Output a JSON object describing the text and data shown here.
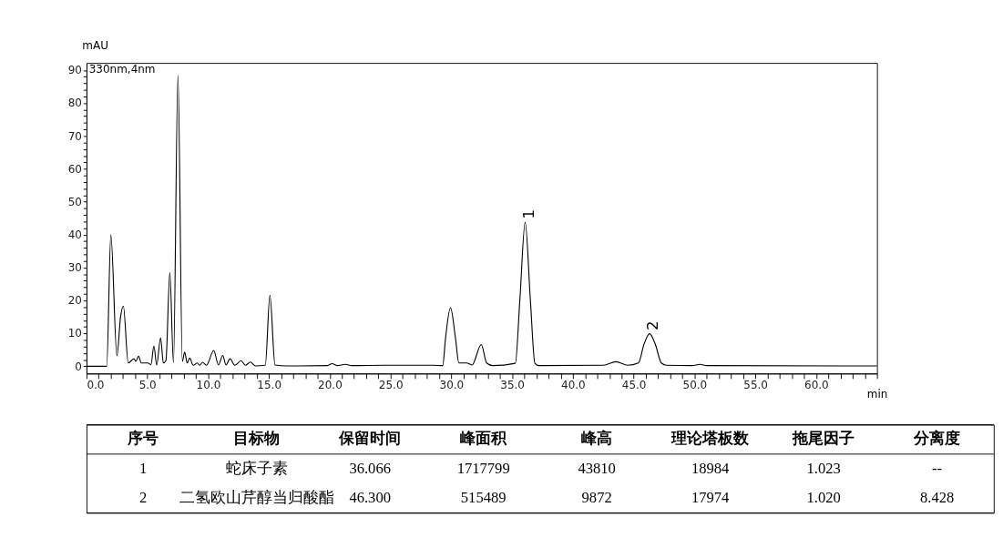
{
  "chart_data": [
    {
      "type": "line",
      "ylabel": "mAU",
      "xlabel": "min",
      "grid": false,
      "annotations": [
        "330nm,4nm",
        {
          "text": "1",
          "x": 36.07,
          "y": 43.8
        },
        {
          "text": "2",
          "x": 46.3,
          "y": 9.9
        }
      ],
      "xlim": [
        0,
        65
      ],
      "ylim": [
        -2.2,
        92.2
      ],
      "xticks": [
        {
          "value": 0,
          "label": "0.0"
        },
        {
          "value": 1,
          "label": null
        },
        {
          "value": 2,
          "label": null
        },
        {
          "value": 3,
          "label": null
        },
        {
          "value": 4,
          "label": null
        },
        {
          "value": 5,
          "label": "5.0"
        },
        {
          "value": 6,
          "label": null
        },
        {
          "value": 7,
          "label": null
        },
        {
          "value": 8,
          "label": null
        },
        {
          "value": 9,
          "label": null
        },
        {
          "value": 10,
          "label": "10.0"
        },
        {
          "value": 11,
          "label": null
        },
        {
          "value": 12,
          "label": null
        },
        {
          "value": 13,
          "label": null
        },
        {
          "value": 14,
          "label": null
        },
        {
          "value": 15,
          "label": "15.0"
        },
        {
          "value": 16,
          "label": null
        },
        {
          "value": 17,
          "label": null
        },
        {
          "value": 18,
          "label": null
        },
        {
          "value": 19,
          "label": null
        },
        {
          "value": 20,
          "label": "20.0"
        },
        {
          "value": 21,
          "label": null
        },
        {
          "value": 22,
          "label": null
        },
        {
          "value": 23,
          "label": null
        },
        {
          "value": 24,
          "label": null
        },
        {
          "value": 25,
          "label": "25.0"
        },
        {
          "value": 26,
          "label": null
        },
        {
          "value": 27,
          "label": null
        },
        {
          "value": 28,
          "label": null
        },
        {
          "value": 29,
          "label": null
        },
        {
          "value": 30,
          "label": "30.0"
        },
        {
          "value": 31,
          "label": null
        },
        {
          "value": 32,
          "label": null
        },
        {
          "value": 33,
          "label": null
        },
        {
          "value": 34,
          "label": null
        },
        {
          "value": 35,
          "label": "35.0"
        },
        {
          "value": 36,
          "label": null
        },
        {
          "value": 37,
          "label": null
        },
        {
          "value": 38,
          "label": null
        },
        {
          "value": 39,
          "label": null
        },
        {
          "value": 40,
          "label": "40.0"
        },
        {
          "value": 41,
          "label": null
        },
        {
          "value": 42,
          "label": null
        },
        {
          "value": 43,
          "label": null
        },
        {
          "value": 44,
          "label": null
        },
        {
          "value": 45,
          "label": "45.0"
        },
        {
          "value": 46,
          "label": null
        },
        {
          "value": 47,
          "label": null
        },
        {
          "value": 48,
          "label": null
        },
        {
          "value": 49,
          "label": null
        },
        {
          "value": 50,
          "label": "50.0"
        },
        {
          "value": 51,
          "label": null
        },
        {
          "value": 52,
          "label": null
        },
        {
          "value": 53,
          "label": null
        },
        {
          "value": 54,
          "label": null
        },
        {
          "value": 55,
          "label": "55.0"
        },
        {
          "value": 56,
          "label": null
        },
        {
          "value": 57,
          "label": null
        },
        {
          "value": 58,
          "label": null
        },
        {
          "value": 59,
          "label": null
        },
        {
          "value": 60,
          "label": "60.0"
        },
        {
          "value": 61,
          "label": null
        },
        {
          "value": 62,
          "label": null
        },
        {
          "value": 63,
          "label": null
        },
        {
          "value": 64,
          "label": null
        },
        {
          "value": 65,
          "label": null
        }
      ],
      "yticks": [
        0,
        {
          "value": 2,
          "label": null
        },
        {
          "value": 4,
          "label": null
        },
        {
          "value": 6,
          "label": null
        },
        {
          "value": 8,
          "label": null
        },
        10,
        {
          "value": 12,
          "label": null
        },
        {
          "value": 14,
          "label": null
        },
        {
          "value": 16,
          "label": null
        },
        {
          "value": 18,
          "label": null
        },
        20,
        {
          "value": 22,
          "label": null
        },
        {
          "value": 24,
          "label": null
        },
        {
          "value": 26,
          "label": null
        },
        {
          "value": 28,
          "label": null
        },
        30,
        {
          "value": 32,
          "label": null
        },
        {
          "value": 34,
          "label": null
        },
        {
          "value": 36,
          "label": null
        },
        {
          "value": 38,
          "label": null
        },
        40,
        {
          "value": 42,
          "label": null
        },
        {
          "value": 44,
          "label": null
        },
        {
          "value": 46,
          "label": null
        },
        {
          "value": 48,
          "label": null
        },
        50,
        {
          "value": 52,
          "label": null
        },
        {
          "value": 54,
          "label": null
        },
        {
          "value": 56,
          "label": null
        },
        {
          "value": 58,
          "label": null
        },
        60,
        {
          "value": 62,
          "label": null
        },
        {
          "value": 64,
          "label": null
        },
        {
          "value": 66,
          "label": null
        },
        {
          "value": 68,
          "label": null
        },
        70,
        {
          "value": 72,
          "label": null
        },
        {
          "value": 74,
          "label": null
        },
        {
          "value": 76,
          "label": null
        },
        {
          "value": 78,
          "label": null
        },
        80,
        {
          "value": 82,
          "label": null
        },
        {
          "value": 84,
          "label": null
        },
        {
          "value": 86,
          "label": null
        },
        {
          "value": 88,
          "label": null
        },
        90
      ],
      "series": [
        {
          "type": "line",
          "color": "#000000",
          "x": [
            0,
            1.66,
            2.0,
            2.5,
            2.8,
            3.03,
            3.43,
            3.9,
            4.05,
            4.28,
            4.5,
            5.03,
            5.3,
            5.54,
            5.77,
            6.09,
            6.32,
            6.53,
            6.85,
            7.15,
            7.52,
            7.88,
            8.07,
            8.28,
            8.48,
            8.78,
            9.1,
            9.3,
            9.54,
            9.86,
            10.46,
            10.85,
            11.2,
            11.47,
            11.8,
            12.2,
            12.7,
            13.07,
            13.47,
            13.9,
            14.7,
            15.08,
            15.5,
            16.5,
            19.8,
            20.2,
            20.6,
            21.3,
            21.8,
            24.5,
            28.5,
            29.29,
            29.52,
            29.93,
            30.34,
            30.62,
            31.24,
            31.7,
            32.46,
            32.9,
            33.4,
            35.26,
            35.63,
            36.07,
            36.5,
            36.87,
            37.2,
            42.5,
            43.54,
            44.5,
            45.38,
            45.85,
            46.3,
            46.76,
            47.27,
            47.7,
            49.8,
            50.44,
            51.0,
            65.0
          ],
          "values": [
            0,
            0,
            40,
            3.2,
            15,
            18.3,
            1,
            2.3,
            1.5,
            3.1,
            1.0,
            1.0,
            0.5,
            6.2,
            0.4,
            8.7,
            1.0,
            1.8,
            28.5,
            1.0,
            88.5,
            1.5,
            4.3,
            1.0,
            2.5,
            0.3,
            1.0,
            0.3,
            1.2,
            0.3,
            4.8,
            0.4,
            3.3,
            0.4,
            2.3,
            0.3,
            1.7,
            0.3,
            1.3,
            0.1,
            0.3,
            21.6,
            0.4,
            0.1,
            0.2,
            0.8,
            0.2,
            0.6,
            0.2,
            0.3,
            0.3,
            0.2,
            8.5,
            17.8,
            8.5,
            1.0,
            1.0,
            0.4,
            6.6,
            1.0,
            0.2,
            0.9,
            20,
            43.8,
            20,
            0.9,
            0.2,
            0.3,
            1.4,
            0.3,
            1.0,
            6.8,
            9.9,
            6.8,
            1.0,
            0.3,
            0.2,
            0.6,
            0.2,
            0.1
          ]
        }
      ]
    },
    {
      "type": "other",
      "categories": [
        "序号",
        "目标物",
        "保留时间",
        "峰面积",
        "峰高",
        "理论塔板数",
        "拖尾因子",
        "分离度"
      ],
      "annotations": [
        "1",
        "蛇床子素",
        "36.066",
        "1717799",
        "43810",
        "18984",
        "1.023",
        "--",
        "2",
        "二氢欧山芹醇当归酸酯",
        "46.300",
        "515489",
        "9872",
        "17974",
        "1.020",
        "8.428"
      ]
    }
  ]
}
